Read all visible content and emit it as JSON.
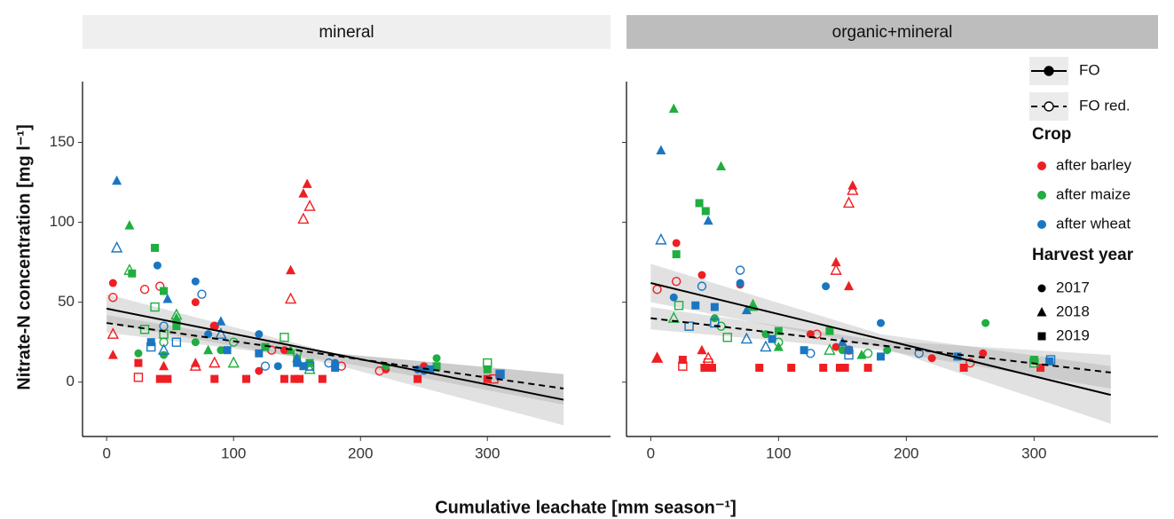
{
  "x_label": "Cumulative leachate [mm season⁻¹]",
  "y_label": "Nitrate-N concentration [mg l⁻¹]",
  "legend": {
    "treatments": [
      {
        "name": "FO",
        "linetype": "solid",
        "filled": true
      },
      {
        "name": "FO red.",
        "linetype": "dashed",
        "filled": false
      }
    ],
    "crop_title": "Crop",
    "crops": [
      {
        "name": "after barley",
        "color": "#ee1f23"
      },
      {
        "name": "after maize",
        "color": "#1fae3f"
      },
      {
        "name": "after wheat",
        "color": "#1a76c2"
      }
    ],
    "year_title": "Harvest year",
    "years": [
      {
        "name": "2017",
        "shape": "circle"
      },
      {
        "name": "2018",
        "shape": "triangle"
      },
      {
        "name": "2019",
        "shape": "square"
      }
    ]
  },
  "chart_data": [
    {
      "type": "scatter",
      "title": "mineral",
      "strip_color": "#efefef",
      "xlim": [
        -19,
        397
      ],
      "ylim": [
        -34,
        188
      ],
      "xticks": [
        0,
        100,
        200,
        300
      ],
      "yticks": [
        0,
        50,
        100,
        150
      ],
      "fits": [
        {
          "treatment": "FO",
          "x": [
            0,
            180,
            360
          ],
          "values": [
            46,
            17.5,
            -11
          ],
          "lower": [
            37,
            11,
            -27
          ],
          "upper": [
            55,
            18,
            5
          ]
        },
        {
          "treatment": "FO red.",
          "x": [
            0,
            180,
            360
          ],
          "values": [
            37,
            16.5,
            -4
          ],
          "lower": [
            31,
            13,
            -14
          ],
          "upper": [
            42,
            18,
            5
          ]
        }
      ],
      "series": [
        {
          "treatment": "FO",
          "crop": "after barley",
          "year": "2017",
          "x": [
            5,
            70,
            85,
            140,
            245,
            250,
            300,
            120,
            220
          ],
          "values": [
            62,
            50,
            35,
            20,
            8,
            10,
            2,
            7,
            8
          ]
        },
        {
          "treatment": "FO",
          "crop": "after maize",
          "year": "2017",
          "x": [
            25,
            45,
            70,
            90,
            150,
            260,
            220
          ],
          "values": [
            18,
            17,
            25,
            20,
            15,
            15,
            10
          ]
        },
        {
          "treatment": "FO",
          "crop": "after wheat",
          "year": "2017",
          "x": [
            40,
            70,
            80,
            120,
            150,
            135,
            180,
            245,
            250
          ],
          "values": [
            73,
            63,
            30,
            30,
            12,
            10,
            12,
            8,
            7
          ]
        },
        {
          "treatment": "FO red.",
          "crop": "after barley",
          "year": "2017",
          "x": [
            5,
            30,
            42,
            85,
            130,
            185,
            215
          ],
          "values": [
            53,
            58,
            60,
            35,
            20,
            10,
            7
          ]
        },
        {
          "treatment": "FO red.",
          "crop": "after maize",
          "year": "2017",
          "x": [
            45,
            100,
            150,
            160
          ],
          "values": [
            25,
            25,
            18,
            10
          ]
        },
        {
          "treatment": "FO red.",
          "crop": "after wheat",
          "year": "2017",
          "x": [
            45,
            75,
            125,
            175
          ],
          "values": [
            35,
            55,
            10,
            12
          ]
        },
        {
          "treatment": "FO",
          "crop": "after barley",
          "year": "2018",
          "x": [
            5,
            45,
            145,
            155,
            158,
            70
          ],
          "values": [
            17,
            10,
            70,
            118,
            124,
            12
          ]
        },
        {
          "treatment": "FO",
          "crop": "after maize",
          "year": "2018",
          "x": [
            18,
            55,
            80,
            145
          ],
          "values": [
            98,
            40,
            20,
            20
          ]
        },
        {
          "treatment": "FO",
          "crop": "after wheat",
          "year": "2018",
          "x": [
            8,
            48,
            90,
            150
          ],
          "values": [
            126,
            52,
            38,
            15
          ]
        },
        {
          "treatment": "FO red.",
          "crop": "after barley",
          "year": "2018",
          "x": [
            5,
            70,
            145,
            155,
            160,
            85
          ],
          "values": [
            30,
            10,
            52,
            102,
            110,
            12
          ]
        },
        {
          "treatment": "FO red.",
          "crop": "after maize",
          "year": "2018",
          "x": [
            18,
            55,
            100,
            160
          ],
          "values": [
            70,
            42,
            12,
            8
          ]
        },
        {
          "treatment": "FO red.",
          "crop": "after wheat",
          "year": "2018",
          "x": [
            8,
            45,
            90
          ],
          "values": [
            84,
            20,
            30
          ]
        },
        {
          "treatment": "FO",
          "crop": "after barley",
          "year": "2019",
          "x": [
            25,
            42,
            48,
            85,
            110,
            140,
            148,
            152,
            170,
            245,
            300
          ],
          "values": [
            12,
            2,
            2,
            2,
            2,
            2,
            2,
            2,
            2,
            2,
            2
          ]
        },
        {
          "treatment": "FO",
          "crop": "after maize",
          "year": "2019",
          "x": [
            20,
            38,
            45,
            55,
            125,
            160,
            260,
            300
          ],
          "values": [
            68,
            84,
            57,
            35,
            22,
            12,
            10,
            8
          ]
        },
        {
          "treatment": "FO",
          "crop": "after wheat",
          "year": "2019",
          "x": [
            35,
            95,
            120,
            150,
            155,
            180,
            255,
            310
          ],
          "values": [
            25,
            20,
            18,
            12,
            10,
            9,
            8,
            5
          ]
        },
        {
          "treatment": "FO red.",
          "crop": "after barley",
          "year": "2019",
          "x": [
            25,
            305
          ],
          "values": [
            3,
            2
          ]
        },
        {
          "treatment": "FO red.",
          "crop": "after maize",
          "year": "2019",
          "x": [
            30,
            38,
            45,
            140,
            300
          ],
          "values": [
            33,
            47,
            30,
            28,
            12
          ]
        },
        {
          "treatment": "FO red.",
          "crop": "after wheat",
          "year": "2019",
          "x": [
            35,
            55,
            160,
            310
          ],
          "values": [
            22,
            25,
            10,
            5
          ]
        }
      ]
    },
    {
      "type": "scatter",
      "title": "organic+mineral",
      "strip_color": "#bdbdbd",
      "xlim": [
        -19,
        397
      ],
      "ylim": [
        -34,
        188
      ],
      "xticks": [
        0,
        100,
        200,
        300
      ],
      "fits": [
        {
          "treatment": "FO",
          "x": [
            0,
            180,
            360
          ],
          "values": [
            62,
            27,
            -8
          ],
          "lower": [
            50,
            22,
            -26
          ],
          "upper": [
            74,
            30,
            10
          ]
        },
        {
          "treatment": "FO red.",
          "x": [
            0,
            180,
            360
          ],
          "values": [
            40,
            23,
            6
          ],
          "lower": [
            33,
            20,
            -4
          ],
          "upper": [
            47,
            26,
            17
          ]
        }
      ],
      "series": [
        {
          "treatment": "FO",
          "crop": "after barley",
          "year": "2017",
          "x": [
            20,
            40,
            70,
            125,
            145,
            220,
            260
          ],
          "values": [
            87,
            67,
            61,
            30,
            22,
            15,
            18
          ]
        },
        {
          "treatment": "FO",
          "crop": "after maize",
          "year": "2017",
          "x": [
            50,
            90,
            150,
            185,
            262
          ],
          "values": [
            40,
            30,
            20,
            20,
            37
          ]
        },
        {
          "treatment": "FO",
          "crop": "after wheat",
          "year": "2017",
          "x": [
            18,
            70,
            137,
            180,
            240
          ],
          "values": [
            53,
            62,
            60,
            37,
            16
          ]
        },
        {
          "treatment": "FO red.",
          "crop": "after barley",
          "year": "2017",
          "x": [
            5,
            20,
            130,
            155,
            250
          ],
          "values": [
            58,
            63,
            30,
            20,
            12
          ]
        },
        {
          "treatment": "FO red.",
          "crop": "after maize",
          "year": "2017",
          "x": [
            55,
            100,
            170
          ],
          "values": [
            35,
            25,
            18
          ]
        },
        {
          "treatment": "FO red.",
          "crop": "after wheat",
          "year": "2017",
          "x": [
            40,
            70,
            125,
            210
          ],
          "values": [
            60,
            70,
            18,
            18
          ]
        },
        {
          "treatment": "FO",
          "crop": "after barley",
          "year": "2018",
          "x": [
            5,
            145,
            155,
            158,
            40
          ],
          "values": [
            15,
            75,
            60,
            123,
            20
          ]
        },
        {
          "treatment": "FO",
          "crop": "after maize",
          "year": "2018",
          "x": [
            18,
            55,
            80,
            100,
            165
          ],
          "values": [
            171,
            135,
            47,
            22,
            17
          ]
        },
        {
          "treatment": "FO",
          "crop": "after wheat",
          "year": "2018",
          "x": [
            8,
            45,
            75,
            150
          ],
          "values": [
            145,
            101,
            45,
            25
          ]
        },
        {
          "treatment": "FO red.",
          "crop": "after barley",
          "year": "2018",
          "x": [
            5,
            145,
            155,
            158,
            45
          ],
          "values": [
            15,
            70,
            112,
            120,
            15
          ]
        },
        {
          "treatment": "FO red.",
          "crop": "after maize",
          "year": "2018",
          "x": [
            18,
            80,
            140
          ],
          "values": [
            40,
            48,
            20
          ]
        },
        {
          "treatment": "FO red.",
          "crop": "after wheat",
          "year": "2018",
          "x": [
            8,
            75,
            90
          ],
          "values": [
            89,
            27,
            22
          ]
        },
        {
          "treatment": "FO",
          "crop": "after barley",
          "year": "2019",
          "x": [
            25,
            42,
            48,
            85,
            110,
            135,
            148,
            152,
            170,
            245,
            305
          ],
          "values": [
            14,
            9,
            9,
            9,
            9,
            9,
            9,
            9,
            9,
            9,
            9
          ]
        },
        {
          "treatment": "FO",
          "crop": "after maize",
          "year": "2019",
          "x": [
            20,
            38,
            43,
            100,
            140,
            300
          ],
          "values": [
            80,
            112,
            107,
            32,
            32,
            14
          ]
        },
        {
          "treatment": "FO",
          "crop": "after wheat",
          "year": "2019",
          "x": [
            35,
            50,
            95,
            120,
            155,
            180,
            240,
            312
          ],
          "values": [
            48,
            47,
            27,
            20,
            20,
            16,
            16,
            13
          ]
        },
        {
          "treatment": "FO red.",
          "crop": "after barley",
          "year": "2019",
          "x": [
            25,
            45
          ],
          "values": [
            10,
            12
          ]
        },
        {
          "treatment": "FO red.",
          "crop": "after maize",
          "year": "2019",
          "x": [
            22,
            60,
            300
          ],
          "values": [
            48,
            28,
            12
          ]
        },
        {
          "treatment": "FO red.",
          "crop": "after wheat",
          "year": "2019",
          "x": [
            30,
            50,
            155,
            313
          ],
          "values": [
            35,
            37,
            17,
            14
          ]
        }
      ]
    }
  ]
}
